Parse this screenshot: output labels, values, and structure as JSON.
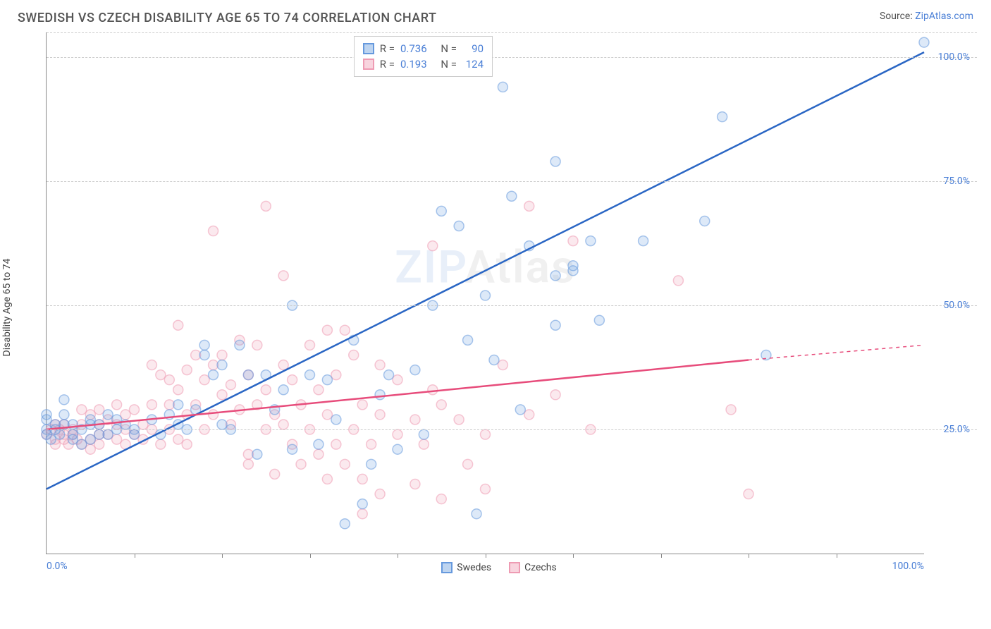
{
  "title": "SWEDISH VS CZECH DISABILITY AGE 65 TO 74 CORRELATION CHART",
  "source_label": "Source:",
  "source_name": "ZipAtlas.com",
  "ylabel": "Disability Age 65 to 74",
  "watermark_a": "ZIP",
  "watermark_b": "Atlas",
  "chart": {
    "type": "scatter",
    "xlim": [
      0,
      100
    ],
    "ylim": [
      0,
      105
    ],
    "ytick_step": 25,
    "xtick_step": 10,
    "xtick_labels_shown": {
      "0": "0.0%",
      "100": "100.0%"
    },
    "ytick_labels": [
      "25.0%",
      "50.0%",
      "75.0%",
      "100.0%"
    ],
    "grid_color": "#cccccc",
    "axis_color": "#888888",
    "background_color": "#ffffff",
    "marker_radius": 7,
    "marker_opacity": 0.55,
    "line_width": 2.5,
    "series": [
      {
        "name": "Swedes",
        "color": "#6699dd",
        "line_color": "#2a66c4",
        "R": "0.736",
        "N": "90",
        "trend": {
          "x1": 0,
          "y1": 13,
          "x2": 100,
          "y2": 101
        },
        "points": [
          [
            0,
            24
          ],
          [
            0,
            25
          ],
          [
            0,
            27
          ],
          [
            0,
            28
          ],
          [
            0.5,
            23
          ],
          [
            1,
            25
          ],
          [
            1,
            26
          ],
          [
            1.5,
            24
          ],
          [
            2,
            26
          ],
          [
            2,
            28
          ],
          [
            2,
            31
          ],
          [
            3,
            23
          ],
          [
            3,
            24
          ],
          [
            3,
            26
          ],
          [
            4,
            22
          ],
          [
            4,
            25
          ],
          [
            5,
            23
          ],
          [
            5,
            26
          ],
          [
            5,
            27
          ],
          [
            6,
            24
          ],
          [
            6,
            26
          ],
          [
            7,
            24
          ],
          [
            7,
            28
          ],
          [
            8,
            25
          ],
          [
            8,
            27
          ],
          [
            9,
            26
          ],
          [
            10,
            24
          ],
          [
            10,
            25
          ],
          [
            12,
            27
          ],
          [
            13,
            24
          ],
          [
            14,
            28
          ],
          [
            15,
            26
          ],
          [
            15,
            30
          ],
          [
            16,
            25
          ],
          [
            17,
            29
          ],
          [
            18,
            40
          ],
          [
            18,
            42
          ],
          [
            19,
            36
          ],
          [
            20,
            26
          ],
          [
            20,
            38
          ],
          [
            21,
            25
          ],
          [
            22,
            42
          ],
          [
            23,
            36
          ],
          [
            24,
            20
          ],
          [
            25,
            36
          ],
          [
            26,
            29
          ],
          [
            27,
            33
          ],
          [
            28,
            21
          ],
          [
            28,
            50
          ],
          [
            30,
            36
          ],
          [
            31,
            22
          ],
          [
            32,
            35
          ],
          [
            33,
            27
          ],
          [
            34,
            6
          ],
          [
            35,
            43
          ],
          [
            36,
            10
          ],
          [
            37,
            18
          ],
          [
            38,
            32
          ],
          [
            39,
            36
          ],
          [
            40,
            21
          ],
          [
            42,
            37
          ],
          [
            43,
            24
          ],
          [
            44,
            50
          ],
          [
            45,
            69
          ],
          [
            47,
            66
          ],
          [
            48,
            43
          ],
          [
            49,
            8
          ],
          [
            50,
            52
          ],
          [
            51,
            39
          ],
          [
            52,
            94
          ],
          [
            53,
            72
          ],
          [
            54,
            29
          ],
          [
            55,
            62
          ],
          [
            58,
            46
          ],
          [
            58,
            56
          ],
          [
            58,
            79
          ],
          [
            60,
            57
          ],
          [
            60,
            58
          ],
          [
            62,
            63
          ],
          [
            63,
            47
          ],
          [
            68,
            63
          ],
          [
            75,
            67
          ],
          [
            77,
            88
          ],
          [
            82,
            40
          ],
          [
            100,
            103
          ]
        ]
      },
      {
        "name": "Czechs",
        "color": "#ee9bb3",
        "line_color": "#e74c7b",
        "R": "0.193",
        "N": "124",
        "trend": {
          "x1": 0,
          "y1": 25,
          "x2": 80,
          "y2": 39
        },
        "trend_ext": {
          "x1": 80,
          "y1": 39,
          "x2": 100,
          "y2": 42
        },
        "points": [
          [
            0,
            24
          ],
          [
            0.5,
            25
          ],
          [
            1,
            22
          ],
          [
            1,
            23
          ],
          [
            1,
            26
          ],
          [
            1.5,
            25
          ],
          [
            2,
            23
          ],
          [
            2,
            24
          ],
          [
            2,
            26
          ],
          [
            2.5,
            22
          ],
          [
            3,
            24
          ],
          [
            3,
            25
          ],
          [
            3.5,
            23
          ],
          [
            4,
            22
          ],
          [
            4,
            26
          ],
          [
            4,
            29
          ],
          [
            5,
            21
          ],
          [
            5,
            23
          ],
          [
            5,
            28
          ],
          [
            6,
            22
          ],
          [
            6,
            24
          ],
          [
            6,
            26
          ],
          [
            6,
            29
          ],
          [
            7,
            24
          ],
          [
            7,
            27
          ],
          [
            8,
            23
          ],
          [
            8,
            26
          ],
          [
            8,
            30
          ],
          [
            9,
            22
          ],
          [
            9,
            25
          ],
          [
            9,
            28
          ],
          [
            10,
            24
          ],
          [
            10,
            29
          ],
          [
            11,
            23
          ],
          [
            11,
            26
          ],
          [
            12,
            25
          ],
          [
            12,
            30
          ],
          [
            12,
            38
          ],
          [
            13,
            22
          ],
          [
            13,
            36
          ],
          [
            14,
            25
          ],
          [
            14,
            30
          ],
          [
            14,
            35
          ],
          [
            15,
            23
          ],
          [
            15,
            33
          ],
          [
            15,
            46
          ],
          [
            16,
            22
          ],
          [
            16,
            28
          ],
          [
            16,
            37
          ],
          [
            17,
            30
          ],
          [
            17,
            40
          ],
          [
            18,
            25
          ],
          [
            18,
            35
          ],
          [
            19,
            28
          ],
          [
            19,
            38
          ],
          [
            19,
            65
          ],
          [
            20,
            32
          ],
          [
            20,
            40
          ],
          [
            21,
            26
          ],
          [
            21,
            34
          ],
          [
            22,
            29
          ],
          [
            22,
            43
          ],
          [
            23,
            18
          ],
          [
            23,
            20
          ],
          [
            23,
            36
          ],
          [
            24,
            30
          ],
          [
            24,
            42
          ],
          [
            25,
            25
          ],
          [
            25,
            33
          ],
          [
            25,
            70
          ],
          [
            26,
            16
          ],
          [
            26,
            28
          ],
          [
            27,
            26
          ],
          [
            27,
            38
          ],
          [
            27,
            56
          ],
          [
            28,
            22
          ],
          [
            28,
            35
          ],
          [
            29,
            18
          ],
          [
            29,
            30
          ],
          [
            30,
            25
          ],
          [
            30,
            42
          ],
          [
            31,
            20
          ],
          [
            31,
            33
          ],
          [
            32,
            15
          ],
          [
            32,
            28
          ],
          [
            32,
            45
          ],
          [
            33,
            22
          ],
          [
            33,
            36
          ],
          [
            34,
            18
          ],
          [
            34,
            45
          ],
          [
            35,
            25
          ],
          [
            35,
            40
          ],
          [
            36,
            8
          ],
          [
            36,
            15
          ],
          [
            36,
            30
          ],
          [
            37,
            22
          ],
          [
            38,
            12
          ],
          [
            38,
            28
          ],
          [
            38,
            38
          ],
          [
            40,
            24
          ],
          [
            40,
            35
          ],
          [
            42,
            14
          ],
          [
            42,
            27
          ],
          [
            43,
            22
          ],
          [
            44,
            33
          ],
          [
            44,
            62
          ],
          [
            45,
            11
          ],
          [
            45,
            30
          ],
          [
            47,
            27
          ],
          [
            48,
            18
          ],
          [
            50,
            13
          ],
          [
            50,
            24
          ],
          [
            52,
            38
          ],
          [
            55,
            28
          ],
          [
            55,
            70
          ],
          [
            58,
            32
          ],
          [
            60,
            63
          ],
          [
            62,
            25
          ],
          [
            72,
            55
          ],
          [
            78,
            29
          ],
          [
            80,
            12
          ]
        ]
      }
    ]
  },
  "legend_top": {
    "R_label": "R =",
    "N_label": "N ="
  },
  "legend_bottom": [
    {
      "label": "Swedes",
      "fill": "#bdd4f0",
      "border": "#6699dd"
    },
    {
      "label": "Czechs",
      "fill": "#f8d4de",
      "border": "#ee9bb3"
    }
  ]
}
